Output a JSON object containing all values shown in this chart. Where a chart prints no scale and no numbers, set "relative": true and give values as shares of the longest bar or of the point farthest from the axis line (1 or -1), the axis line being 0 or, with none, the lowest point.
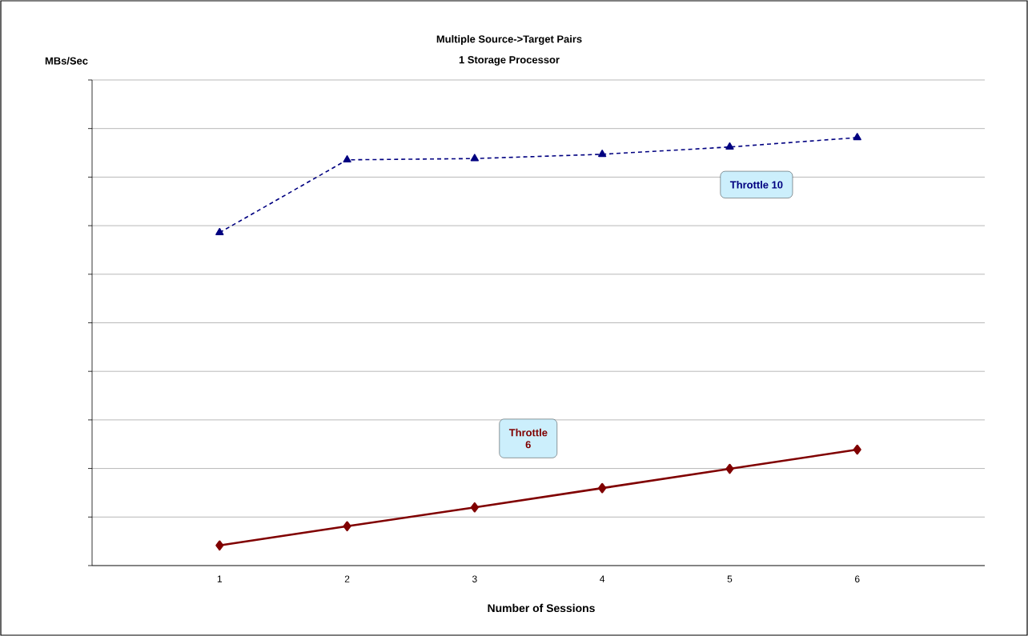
{
  "chart_data": {
    "type": "line",
    "title": "Multiple Source->Target Pairs",
    "subtitle": "1 Storage Processor",
    "annotations": [
      "MBs/Sec"
    ],
    "xlabel": "Number of Sessions",
    "categories": [
      "1",
      "2",
      "3",
      "4",
      "5",
      "6"
    ],
    "relative": true,
    "grid": "y",
    "legend": false,
    "series": [
      {
        "name": "Throttle 10",
        "color": "#000080",
        "marker": "triangle",
        "line_style": "dashed",
        "values": [
          0.778,
          0.948,
          0.951,
          0.961,
          0.978,
          1
        ]
      },
      {
        "name": "Throttle 6",
        "color": "#800000",
        "marker": "diamond",
        "line_style": "solid",
        "values": [
          0.047,
          0.092,
          0.136,
          0.181,
          0.226,
          0.271
        ]
      }
    ]
  }
}
